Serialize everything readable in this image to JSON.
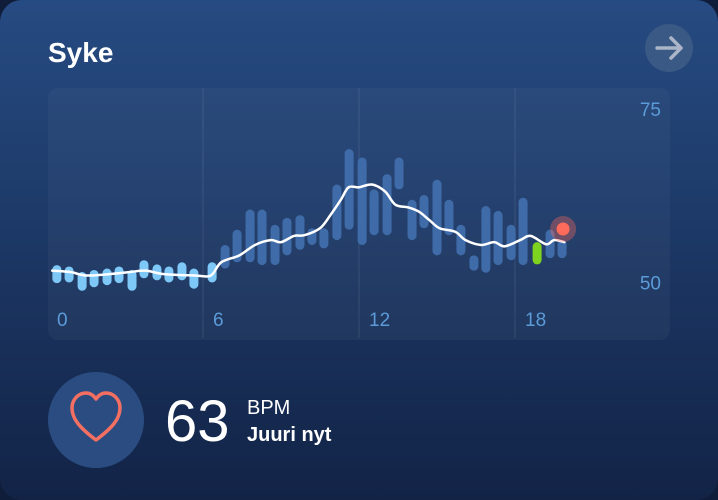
{
  "header": {
    "title": "Syke"
  },
  "chart_data": {
    "type": "range",
    "xlim": [
      0,
      24
    ],
    "xticks": [
      0,
      6,
      12,
      18
    ],
    "ylim": [
      42,
      78
    ],
    "yticks": [
      50,
      75
    ],
    "grid": true,
    "series": [
      {
        "color": "#7ec8f8",
        "x": [
          0.38,
          0.85,
          1.35,
          1.81,
          2.31,
          2.77,
          3.27,
          3.73,
          4.23,
          4.69,
          5.19,
          5.65,
          6.35
        ],
        "low": [
          49.9,
          50.0,
          48.8,
          49.3,
          49.6,
          49.9,
          48.8,
          50.6,
          50.3,
          50.0,
          50.3,
          49.1,
          50.0
        ],
        "high": [
          52.5,
          52.3,
          51.5,
          51.8,
          52.0,
          52.3,
          51.8,
          53.2,
          52.6,
          52.3,
          52.9,
          52.0,
          52.9
        ]
      },
      {
        "color": "#3f6ca8",
        "x": [
          6.85,
          7.31,
          7.81,
          8.27,
          8.77,
          9.23,
          9.73,
          10.19,
          10.65,
          11.15,
          11.62,
          12.12,
          12.58,
          13.08,
          13.54,
          14.04,
          14.5,
          15.0,
          15.46,
          15.92,
          16.42,
          16.88,
          17.35,
          17.85,
          18.31,
          19.35,
          19.81
        ],
        "low": [
          52.0,
          52.9,
          52.9,
          52.5,
          52.5,
          53.9,
          54.7,
          55.4,
          54.9,
          56.1,
          57.6,
          55.4,
          56.8,
          56.8,
          63.4,
          56.1,
          57.8,
          53.9,
          56.8,
          53.9,
          51.7,
          51.4,
          52.5,
          53.2,
          52.5,
          53.5,
          53.5
        ],
        "high": [
          55.4,
          57.6,
          60.5,
          60.5,
          58.3,
          59.3,
          59.7,
          57.8,
          57.8,
          64.1,
          69.2,
          68.0,
          63.4,
          65.6,
          68.0,
          61.9,
          62.6,
          64.8,
          61.9,
          58.3,
          53.9,
          61.0,
          60.3,
          58.3,
          62.2,
          57.6,
          56.1
        ]
      },
      {
        "color": "#7ed321",
        "x": [
          18.85
        ],
        "low": [
          52.6
        ],
        "high": [
          55.8
        ]
      }
    ],
    "line": {
      "color": "#ffffff",
      "x": [
        0.2,
        0.9,
        1.5,
        2.4,
        3.2,
        3.8,
        4.5,
        5.7,
        6.3,
        6.7,
        7.4,
        8.0,
        8.6,
        9.0,
        9.5,
        9.9,
        10.5,
        10.9,
        11.3,
        11.6,
        12.0,
        12.5,
        13.0,
        13.4,
        13.9,
        14.3,
        14.7,
        15.1,
        15.7,
        16.1,
        16.7,
        17.2,
        17.6,
        18.2,
        18.6,
        19.2,
        19.5,
        19.9
      ],
      "values": [
        51.7,
        51.5,
        51.0,
        51.2,
        51.5,
        51.7,
        51.2,
        51.0,
        51.0,
        52.9,
        53.9,
        55.4,
        56.1,
        55.8,
        56.7,
        56.8,
        57.8,
        59.7,
        61.9,
        63.7,
        63.7,
        64.1,
        63.1,
        61.2,
        60.8,
        60.2,
        59.0,
        57.8,
        57.3,
        56.1,
        55.4,
        55.8,
        55.2,
        56.1,
        56.7,
        55.5,
        56.1,
        55.8
      ]
    },
    "current": {
      "x": 19.85,
      "value": 57.7,
      "color": "#ff6b5b"
    }
  },
  "reading": {
    "value": 63,
    "unit": "BPM",
    "time": "Juuri nyt"
  }
}
